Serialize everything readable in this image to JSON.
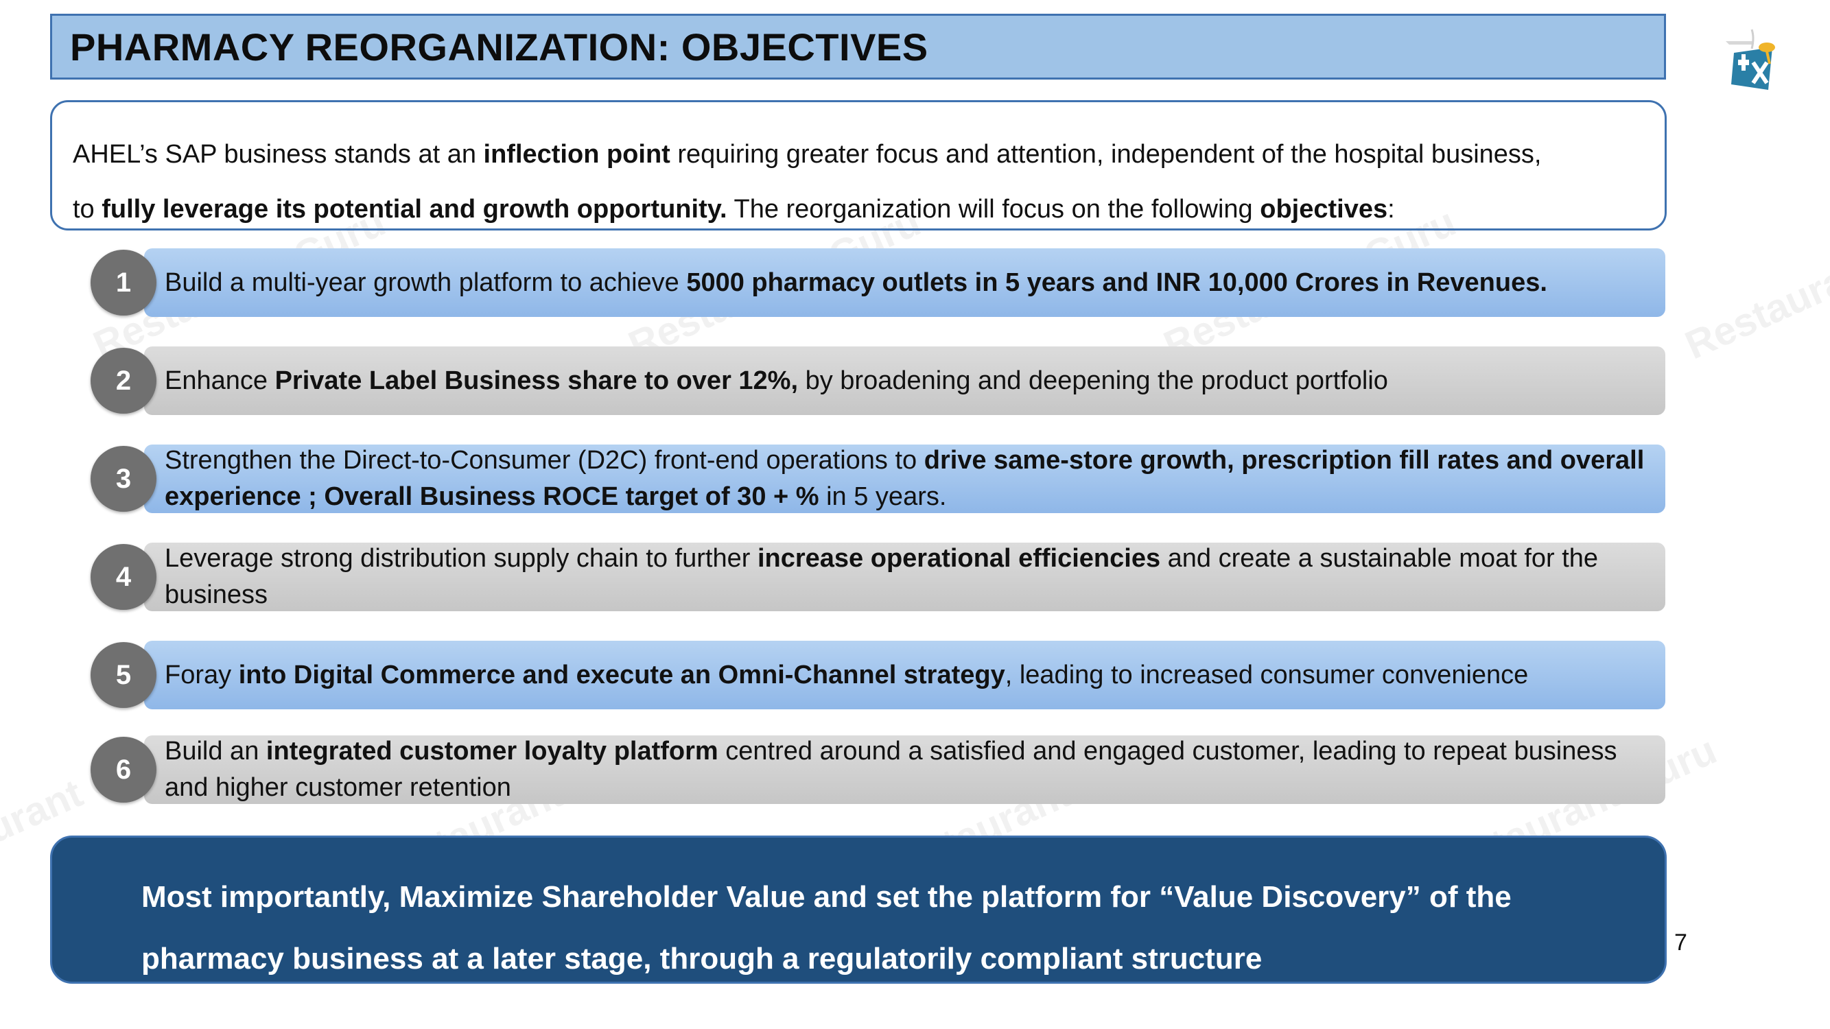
{
  "title": "PHARMACY REORGANIZATION: OBJECTIVES",
  "logo": {
    "icon": "company-logo-icon"
  },
  "intro": {
    "line1": {
      "t1": "AHEL’s SAP business stands at an ",
      "b1": "inflection point",
      "t2": " requiring greater focus and attention, independent of the hospital business,"
    },
    "line2": {
      "t1": "to ",
      "b1": "fully leverage its potential and growth opportunity.",
      "t2": " The reorganization will focus on the following ",
      "b2": "objectives",
      "t3": ":"
    }
  },
  "objectives": [
    {
      "number": "1",
      "t1": "Build a multi-year growth platform to achieve ",
      "b1": "5000 pharmacy outlets in 5 years and INR 10,000 Crores in Revenues.",
      "t2": ""
    },
    {
      "number": "2",
      "t1": "Enhance ",
      "b1": "Private Label Business share to over 12%,",
      "t2": " by broadening and deepening the product portfolio"
    },
    {
      "number": "3",
      "t1": "Strengthen the Direct-to-Consumer (D2C) front-end operations to ",
      "b1": "drive same-store growth, prescription fill rates and overall experience ; Overall Business ROCE target of 30 + %",
      "t2": " in 5 years."
    },
    {
      "number": "4",
      "t1": "Leverage strong distribution supply chain to further ",
      "b1": "increase operational efficiencies",
      "t2": " and create a sustainable moat for the business"
    },
    {
      "number": "5",
      "t1": "Foray ",
      "b1": "into Digital Commerce and execute an Omni-Channel strategy",
      "t2": ", leading to increased consumer convenience"
    },
    {
      "number": "6",
      "t1": "Build an ",
      "b1": "integrated customer loyalty platform",
      "t2": " centred around a satisfied and engaged customer, leading to repeat business and higher customer retention"
    }
  ],
  "footer": {
    "line1": "Most importantly, Maximize Shareholder Value and set the platform for “Value Discovery” of the",
    "line2": "pharmacy business at a later stage, through a regulatorily compliant structure"
  },
  "page_number": "7",
  "watermark": "Restaurant Guru",
  "colors": {
    "title_bg": "#9fc3e7",
    "border": "#3f72b0",
    "blue_bar": "#8fb7e8",
    "gray_bar": "#c6c6c6",
    "badge": "#707070",
    "footer_bg": "#1f4e7c"
  }
}
